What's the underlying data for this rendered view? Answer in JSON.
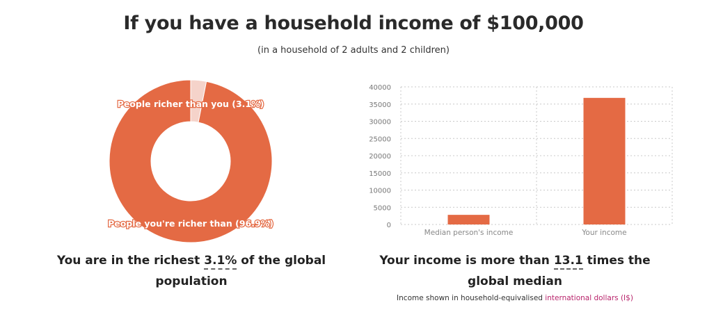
{
  "header": {
    "title": "If you have a household income of $100,000",
    "subtitle": "(in a household of 2 adults and 2 children)"
  },
  "chart_data": [
    {
      "type": "pie",
      "categories": [
        "People richer than you (3.1%)",
        "People you're richer than (96.9%)"
      ],
      "values": [
        3.1,
        96.9
      ],
      "colors": [
        "#f5d3ca",
        "#e46a44"
      ]
    },
    {
      "type": "bar",
      "categories": [
        "Median person's income",
        "Your income"
      ],
      "values": [
        2800,
        36800
      ],
      "ylim": [
        0,
        40000
      ],
      "yticks": [
        0,
        5000,
        10000,
        15000,
        20000,
        25000,
        30000,
        35000,
        40000
      ],
      "grid": true,
      "color": "#e46a44"
    }
  ],
  "captions": {
    "left": {
      "pre": "You are in the richest ",
      "highlight": "3.1%",
      "post": " of the global population"
    },
    "right": {
      "pre": "Your income is more than ",
      "highlight": "13.1",
      "post": " times the global median"
    }
  },
  "footnote": {
    "text": "Income shown in household-equivalised ",
    "link": "international dollars (I$)"
  }
}
